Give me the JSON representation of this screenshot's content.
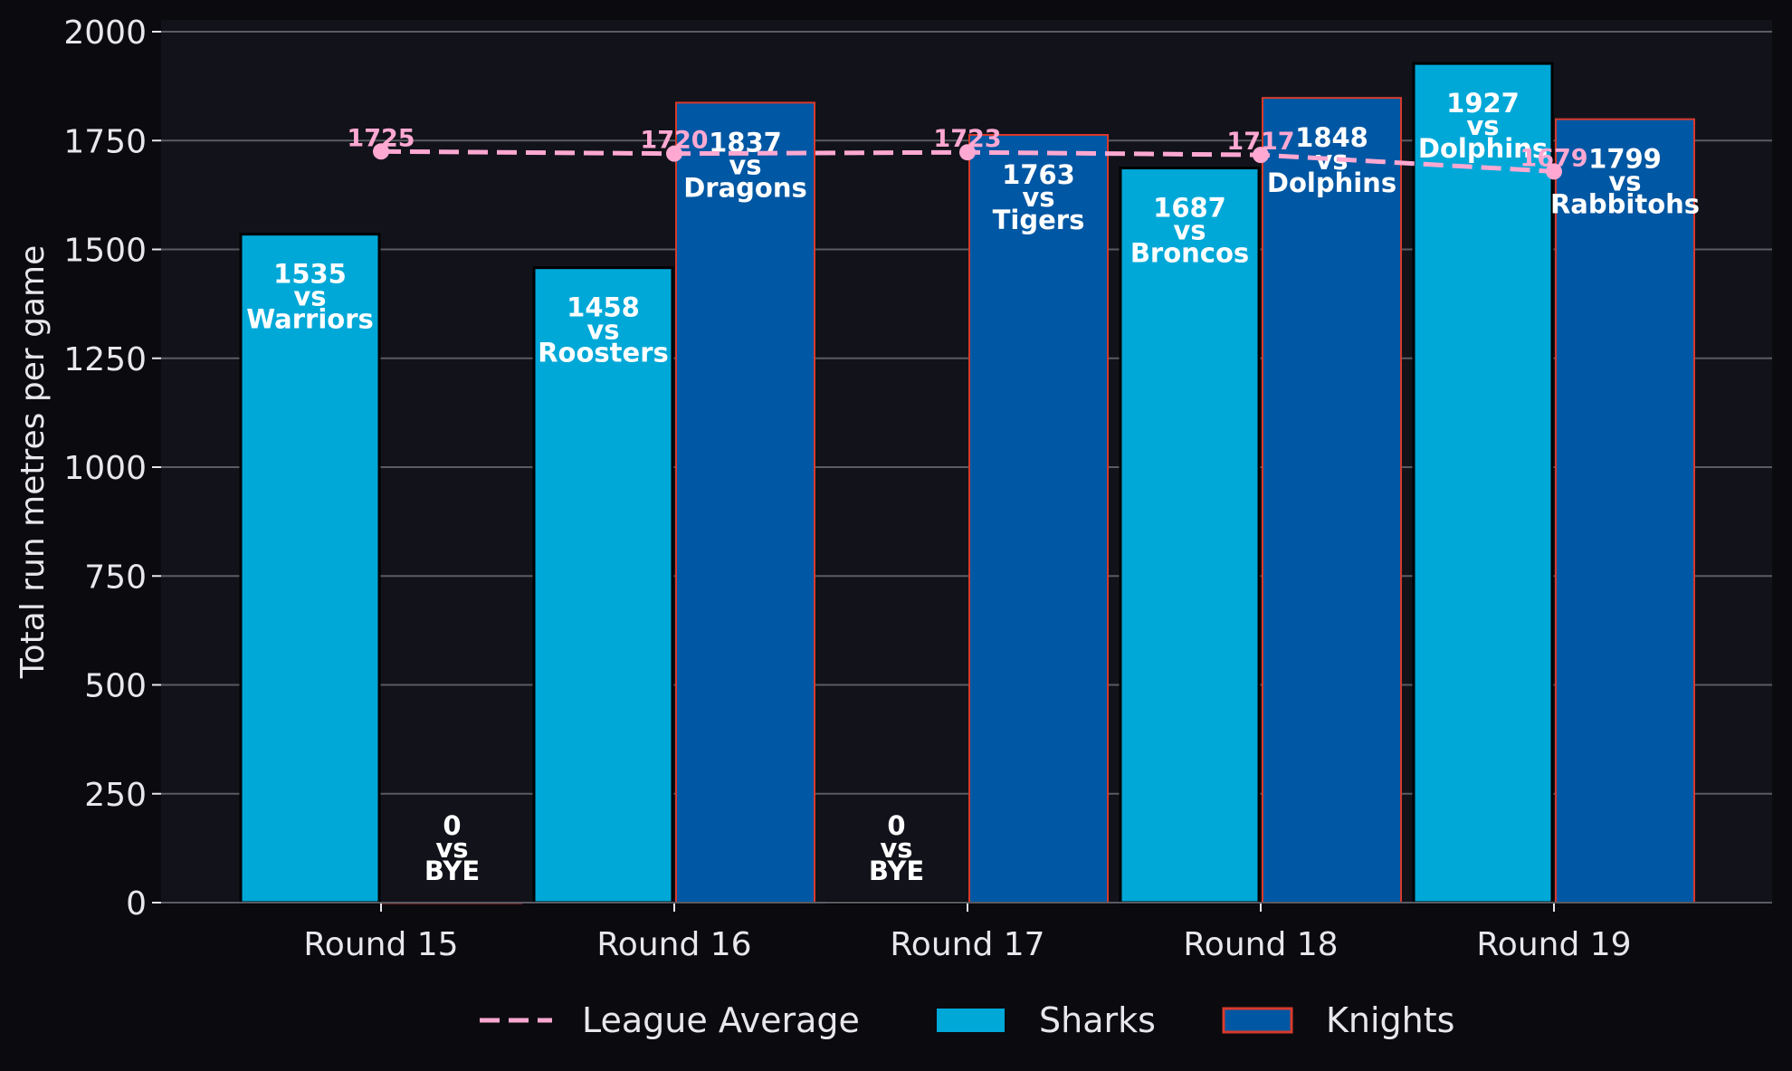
{
  "chart_data": {
    "type": "bar",
    "title": "",
    "xlabel": "",
    "ylabel": "Total run metres per game",
    "ylim": [
      0,
      2000
    ],
    "yticks": [
      0,
      250,
      500,
      750,
      1000,
      1250,
      1500,
      1750,
      2000
    ],
    "grid": "y",
    "legend_position": "bottom",
    "categories": [
      "Round 15",
      "Round 16",
      "Round 17",
      "Round 18",
      "Round 19"
    ],
    "series": [
      {
        "name": "Sharks",
        "kind": "bar",
        "color": "#00a8d8",
        "values": [
          1535,
          1458,
          0,
          1687,
          1927
        ],
        "opponents": [
          "Warriors",
          "Roosters",
          "BYE",
          "Broncos",
          "Dolphins"
        ]
      },
      {
        "name": "Knights",
        "kind": "bar",
        "color": "#0057a3",
        "edge_color": "#d83a2c",
        "values": [
          0,
          1837,
          1763,
          1848,
          1799
        ],
        "opponents": [
          "BYE",
          "Dragons",
          "Tigers",
          "Dolphins",
          "Rabbitohs"
        ]
      },
      {
        "name": "League Average",
        "kind": "line",
        "style": "dashed",
        "color": "#ffa8d2",
        "values": [
          1725,
          1720,
          1723,
          1717,
          1679
        ]
      }
    ],
    "vs_word": "vs"
  }
}
